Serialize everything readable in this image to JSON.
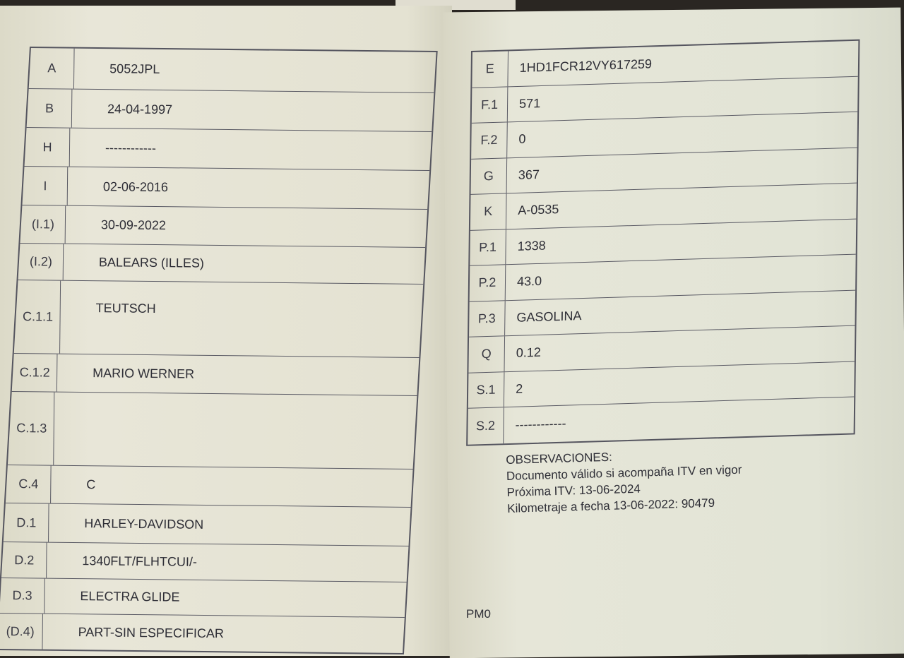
{
  "left_page": {
    "rows": [
      {
        "label": "A",
        "value": "5052JPL"
      },
      {
        "label": "B",
        "value": "24-04-1997"
      },
      {
        "label": "H",
        "value": "------------"
      },
      {
        "label": "I",
        "value": "02-06-2016"
      },
      {
        "label": "(I.1)",
        "value": "30-09-2022"
      },
      {
        "label": "(I.2)",
        "value": "BALEARS (ILLES)"
      },
      {
        "label": "C.1.1",
        "value": "TEUTSCH"
      },
      {
        "label": "C.1.2",
        "value": "MARIO WERNER"
      },
      {
        "label": "C.1.3",
        "value": ""
      },
      {
        "label": "C.4",
        "value": "C"
      },
      {
        "label": "D.1",
        "value": "HARLEY-DAVIDSON"
      },
      {
        "label": "D.2",
        "value": "1340FLT/FLHTCUI/-"
      },
      {
        "label": "D.3",
        "value": "ELECTRA GLIDE"
      },
      {
        "label": "(D.4)",
        "value": "PART-SIN ESPECIFICAR"
      }
    ]
  },
  "right_page": {
    "rows": [
      {
        "label": "E",
        "value": "1HD1FCR12VY617259"
      },
      {
        "label": "F.1",
        "value": "571"
      },
      {
        "label": "F.2",
        "value": "0"
      },
      {
        "label": "G",
        "value": "367"
      },
      {
        "label": "K",
        "value": "A-0535"
      },
      {
        "label": "P.1",
        "value": "1338"
      },
      {
        "label": "P.2",
        "value": "43.0"
      },
      {
        "label": "P.3",
        "value": "GASOLINA"
      },
      {
        "label": "Q",
        "value": "0.12"
      },
      {
        "label": "S.1",
        "value": "2"
      },
      {
        "label": "S.2",
        "value": "------------"
      }
    ],
    "observaciones": {
      "heading": "OBSERVACIONES:",
      "lines": [
        "Documento válido si acompaña ITV en vigor",
        "Próxima ITV: 13-06-2024",
        "Kilometraje a fecha 13-06-2022: 90479"
      ]
    },
    "footer_code": "PM0"
  }
}
